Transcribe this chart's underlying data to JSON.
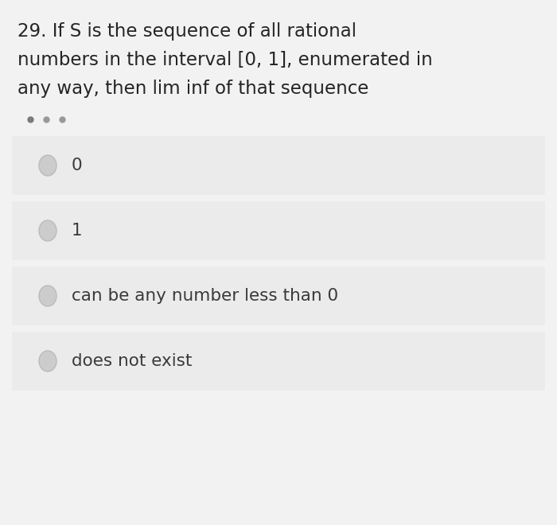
{
  "background_color": "#f2f2f2",
  "question_text_lines": [
    "29. If S is the sequence of all rational",
    "numbers in the interval [0, 1], enumerated in",
    "any way, then lim inf of that sequence"
  ],
  "options": [
    "0",
    "1",
    "can be any number less than 0",
    "does not exist"
  ],
  "option_box_color": "#ebebeb",
  "option_text_color": "#3a3a3a",
  "question_text_color": "#252525",
  "radio_fill_color": "#cccccc",
  "radio_edge_color": "#bbbbbb",
  "font_size_question": 16.5,
  "font_size_option": 15.5,
  "fig_width": 7.0,
  "fig_height": 6.6,
  "dpi": 100
}
